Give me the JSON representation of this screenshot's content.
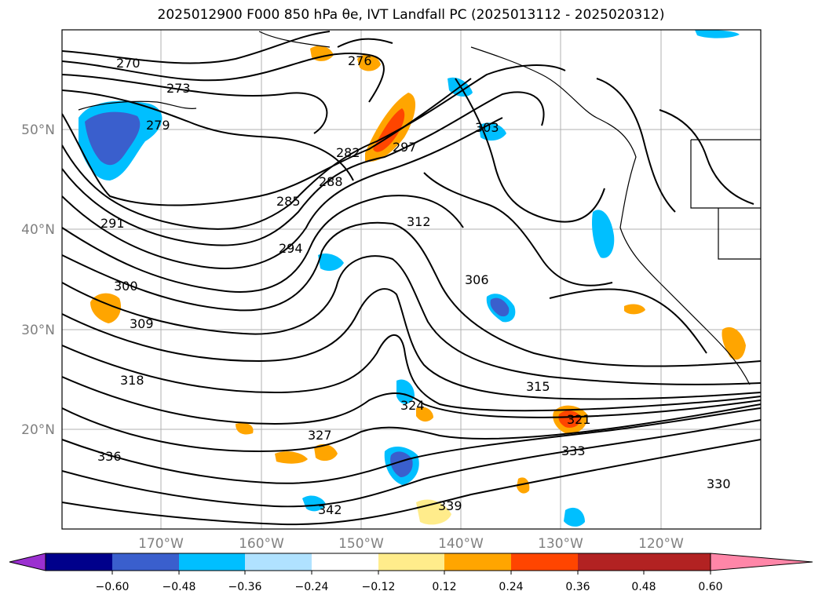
{
  "title": "2025012900 F000 850 hPa θe, IVT Landfall PC (2025013112 - 2025020312)",
  "map": {
    "lat_ticks": [
      "50°N",
      "40°N",
      "30°N",
      "20°N"
    ],
    "lon_ticks": [
      "170°W",
      "160°W",
      "150°W",
      "140°W",
      "130°W",
      "120°W"
    ],
    "contour_labels": [
      "270",
      "273",
      "276",
      "279",
      "282",
      "285",
      "288",
      "291",
      "294",
      "297",
      "300",
      "303",
      "306",
      "309",
      "312",
      "315",
      "318",
      "321",
      "324",
      "327",
      "330",
      "333",
      "336",
      "339",
      "342"
    ]
  },
  "colorbar": {
    "ticks": [
      "−0.60",
      "−0.48",
      "−0.36",
      "−0.24",
      "−0.12",
      "0.12",
      "0.24",
      "0.36",
      "0.48",
      "0.60"
    ],
    "colors": [
      "#9b30d0",
      "#00008b",
      "#3a5fcd",
      "#00bfff",
      "#b0e2ff",
      "#ffffff",
      "#ffec8b",
      "#ffa500",
      "#ff4500",
      "#b22222",
      "#ff86a8"
    ]
  }
}
